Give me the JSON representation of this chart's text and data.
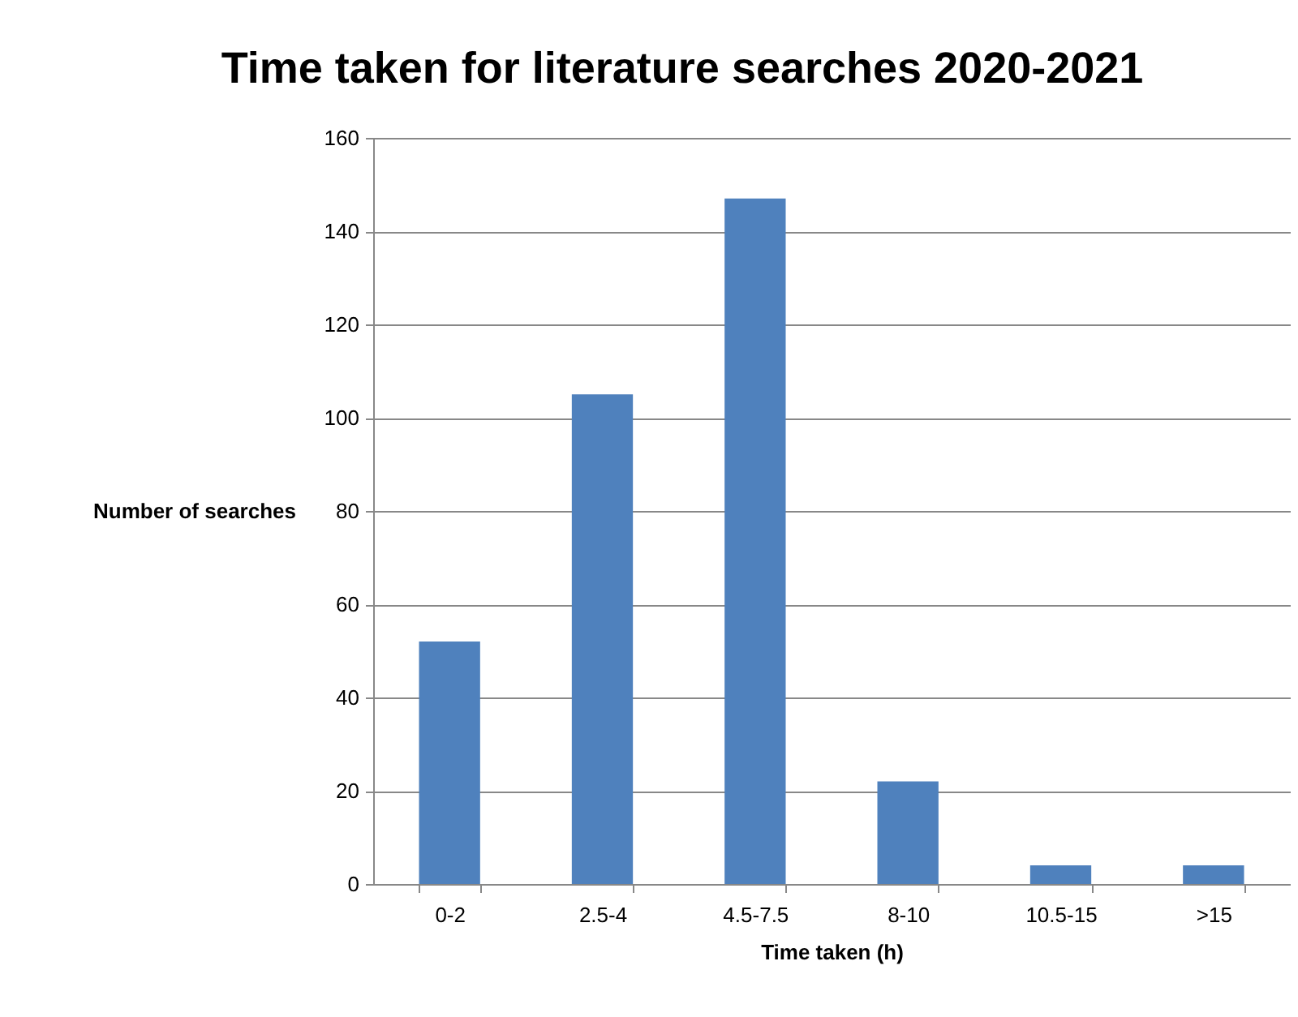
{
  "chart_data": {
    "type": "bar",
    "title": "Time taken for literature searches 2020-2021",
    "xlabel": "Time taken (h)",
    "ylabel": "Number of searches",
    "categories": [
      "0-2",
      "2.5-4",
      "4.5-7.5",
      "8-10",
      "10.5-15",
      ">15"
    ],
    "series": [
      {
        "color": "#4f81bd",
        "values": [
          52,
          105,
          147,
          22,
          4,
          4
        ]
      }
    ],
    "ylim": [
      0,
      160
    ],
    "yticks": [
      0,
      20,
      40,
      60,
      80,
      100,
      120,
      140,
      160
    ],
    "grid": "y",
    "legend": false
  }
}
